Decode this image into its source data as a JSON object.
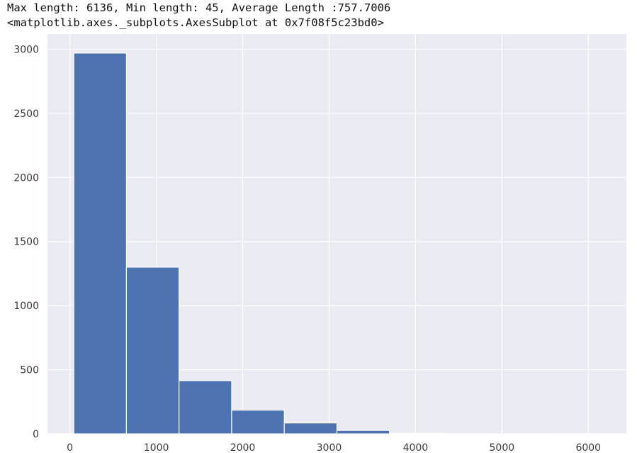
{
  "output": {
    "stats_line": "Max length: 6136, Min length: 45, Average Length :757.7006",
    "repr_line": "<matplotlib.axes._subplots.AxesSubplot at 0x7f08f5c23bd0>"
  },
  "colors": {
    "bar": "#4c72b0",
    "background": "#eaeaf2",
    "grid": "#ffffff",
    "tick_text": "#3a3a3a"
  },
  "chart_data": {
    "type": "bar",
    "title": "",
    "xlabel": "",
    "ylabel": "",
    "bins": [
      {
        "x0": 45,
        "x1": 654.1,
        "count": 2970
      },
      {
        "x0": 654.1,
        "x1": 1263.2,
        "count": 1300
      },
      {
        "x0": 1263.2,
        "x1": 1872.3,
        "count": 415
      },
      {
        "x0": 1872.3,
        "x1": 2481.4,
        "count": 185
      },
      {
        "x0": 2481.4,
        "x1": 3090.5,
        "count": 85
      },
      {
        "x0": 3090.5,
        "x1": 3699.6,
        "count": 27
      },
      {
        "x0": 3699.6,
        "x1": 4308.7,
        "count": 5
      },
      {
        "x0": 4308.7,
        "x1": 4917.8,
        "count": 1
      },
      {
        "x0": 4917.8,
        "x1": 5526.9,
        "count": 0
      },
      {
        "x0": 5526.9,
        "x1": 6136,
        "count": 1
      }
    ],
    "x_ticks": [
      0,
      1000,
      2000,
      3000,
      4000,
      5000,
      6000
    ],
    "y_ticks": [
      0,
      500,
      1000,
      1500,
      2000,
      2500,
      3000
    ],
    "xlim": [
      -259.5,
      6440.5
    ],
    "ylim": [
      0,
      3118.5
    ],
    "grid": true,
    "legend": "none"
  }
}
